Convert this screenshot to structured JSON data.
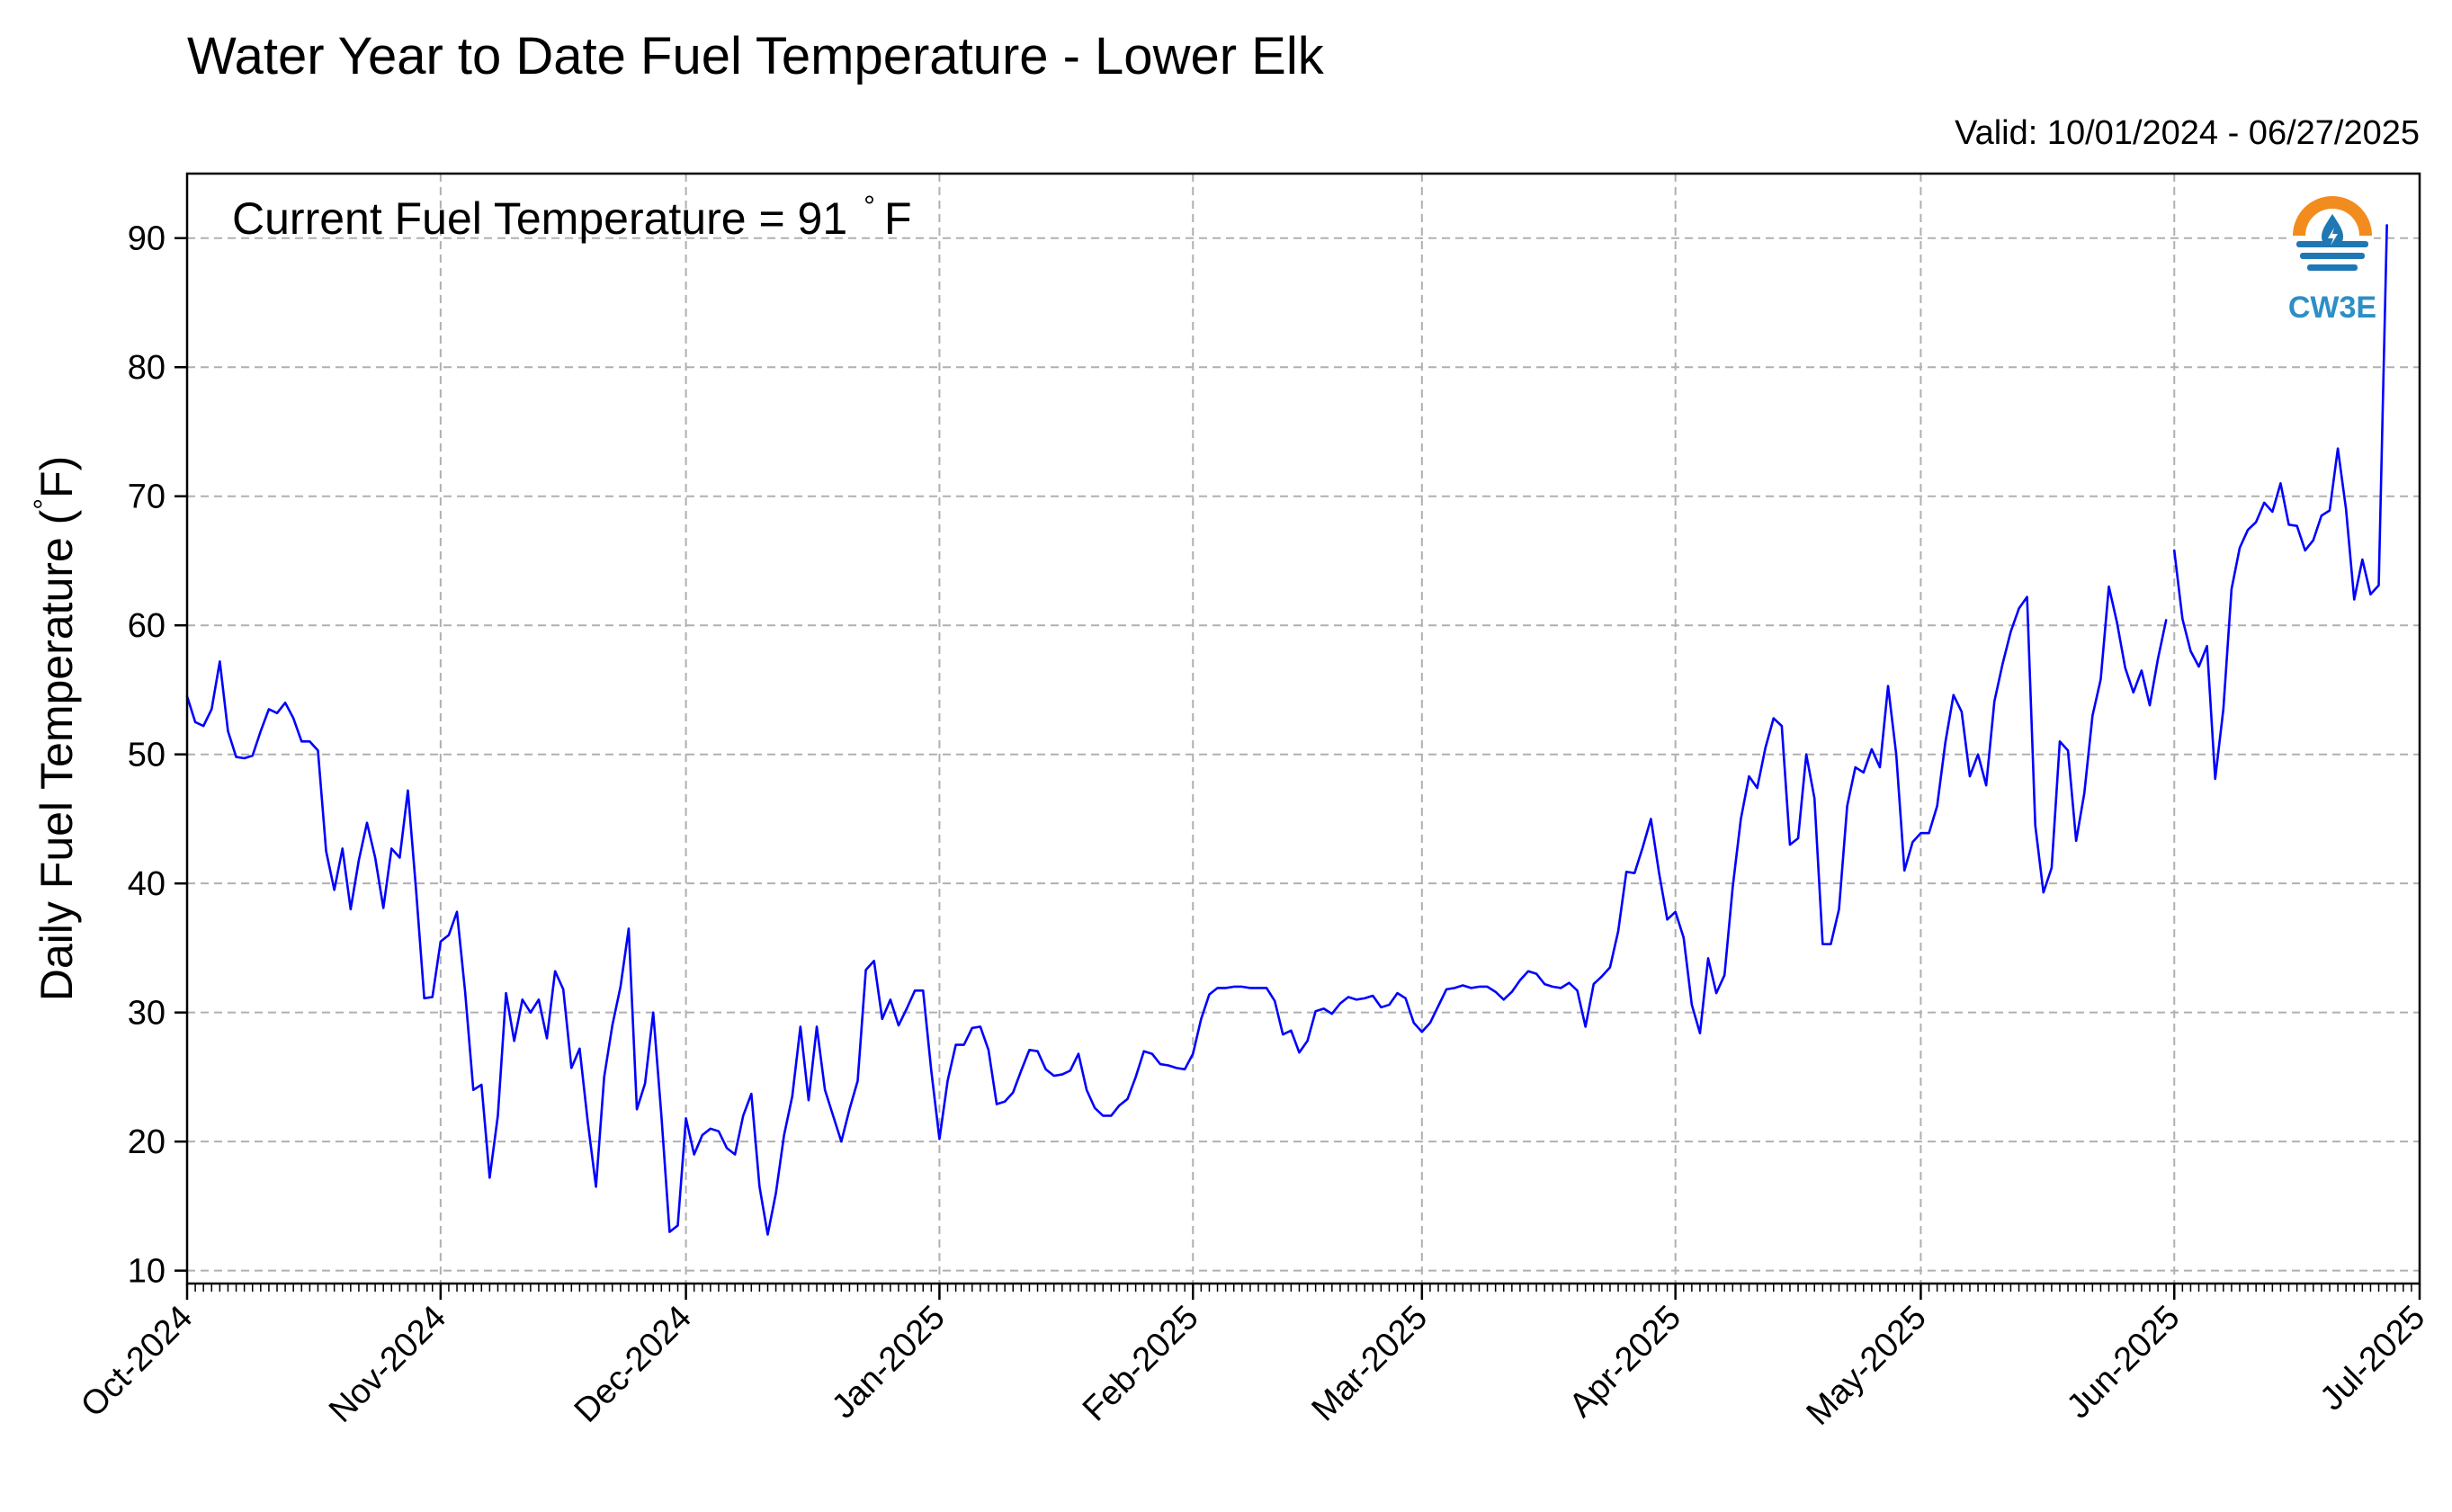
{
  "title": "Water Year to Date Fuel Temperature - Lower Elk",
  "valid_range": "Valid: 10/01/2024 - 06/27/2025",
  "annotation": {
    "prefix": "Current Fuel Temperature = 91",
    "degree": "°",
    "unit": "F"
  },
  "ylabel": {
    "text": "Daily Fuel Temperature (",
    "degree": "°",
    "unit": "F)"
  },
  "logo": {
    "text": "CW3E",
    "icon": "cw3e-logo-icon",
    "colors": {
      "ring": "#f28c1e",
      "water": "#1f78b4"
    }
  },
  "colors": {
    "line": "#0000ff",
    "grid": "#b0b0b0",
    "background": "#ffffff"
  },
  "chart_data": {
    "type": "line",
    "title": "Water Year to Date Fuel Temperature - Lower Elk",
    "subtitle": "Valid: 10/01/2024 - 06/27/2025",
    "xlabel": "",
    "ylabel": "Daily Fuel Temperature (°F)",
    "ylim": [
      9,
      95
    ],
    "yticks": [
      10,
      20,
      30,
      40,
      50,
      60,
      70,
      80,
      90
    ],
    "xlim": [
      "2024-10-01",
      "2025-07-01"
    ],
    "xticks": [
      {
        "date": "2024-10-01",
        "label": "Oct-2024"
      },
      {
        "date": "2024-11-01",
        "label": "Nov-2024"
      },
      {
        "date": "2024-12-01",
        "label": "Dec-2024"
      },
      {
        "date": "2025-01-01",
        "label": "Jan-2025"
      },
      {
        "date": "2025-02-01",
        "label": "Feb-2025"
      },
      {
        "date": "2025-03-01",
        "label": "Mar-2025"
      },
      {
        "date": "2025-04-01",
        "label": "Apr-2025"
      },
      {
        "date": "2025-05-01",
        "label": "May-2025"
      },
      {
        "date": "2025-06-01",
        "label": "Jun-2025"
      },
      {
        "date": "2025-07-01",
        "label": "Jul-2025"
      }
    ],
    "grid": true,
    "legend": "none",
    "series": [
      {
        "segments": [
          {
            "start": "2024-10-01",
            "values": [
              54.5,
              52.5,
              52.2,
              53.5,
              57.2,
              51.8,
              49.8,
              49.7,
              49.9,
              51.8,
              53.5,
              53.2,
              54.0,
              52.8,
              51.0,
              51.0,
              50.3,
              42.5,
              39.5,
              42.7,
              38.0,
              41.8,
              44.7,
              42.0,
              38.1,
              42.7,
              42.0,
              47.2,
              39.5,
              31.1,
              31.2,
              35.5,
              36.0,
              37.8,
              31.6,
              24.0,
              24.4,
              17.2,
              22.0,
              31.5,
              27.8,
              31.0,
              30.0,
              31.0,
              28.0,
              33.2,
              31.8,
              25.7,
              27.2,
              21.5,
              16.5,
              25.0,
              29.0,
              32.0,
              36.5,
              22.5,
              24.5,
              30.0,
              22.0,
              13.0,
              13.5,
              21.8,
              19.0,
              20.5,
              21.0,
              20.8,
              19.5,
              19.0,
              22.0,
              23.7,
              16.5,
              12.8,
              16.0,
              20.5,
              23.5,
              28.9,
              23.2,
              28.9,
              24.0,
              22.0,
              20.0,
              22.5,
              24.7,
              33.3,
              34.0,
              29.5,
              31.0,
              29.0,
              30.3,
              31.7,
              31.7,
              25.5,
              20.2,
              24.7,
              27.5,
              27.5,
              28.8,
              28.9,
              27.1,
              22.9,
              23.1,
              23.8,
              25.5,
              27.1,
              27.0,
              25.6,
              25.1,
              25.2,
              25.5,
              26.8,
              24.0,
              22.6,
              22.0,
              22.0,
              22.8,
              23.3,
              25.0,
              27.0,
              26.8,
              26.0,
              25.9,
              25.7,
              25.6,
              26.8,
              29.5,
              31.4,
              31.9,
              31.9,
              32.0,
              32.0,
              31.9,
              31.9,
              31.9,
              30.9,
              28.3,
              28.6,
              26.9,
              27.8,
              30.1,
              30.3,
              29.9,
              30.7,
              31.2,
              31.0,
              31.1,
              31.3,
              30.4,
              30.6,
              31.5,
              31.1,
              29.2,
              28.5,
              29.2,
              30.5,
              31.8,
              31.9,
              32.1,
              31.9,
              32.0,
              32.0,
              31.6,
              31.0,
              31.6,
              32.5,
              33.2,
              33.0,
              32.2,
              32.0,
              31.9,
              32.3,
              31.7,
              28.9,
              32.2,
              32.8,
              33.5,
              36.3,
              40.9,
              40.8,
              42.8,
              45.0,
              40.8,
              37.2,
              37.8,
              35.8,
              30.6,
              28.4,
              34.2,
              31.5,
              32.9,
              39.7,
              45.0,
              48.3,
              47.4,
              50.5,
              52.8,
              52.2,
              43.0,
              43.5,
              50.0,
              46.6,
              35.3,
              35.3,
              38.0,
              46.0,
              49.0,
              48.6,
              50.4,
              49.0,
              55.3,
              50.0,
              41.0,
              43.2,
              43.9,
              43.9,
              46.0,
              50.9,
              54.6,
              53.3,
              48.3,
              50.0,
              47.6,
              54.1,
              57.0,
              59.5,
              61.3,
              62.2,
              44.5,
              39.3,
              41.2,
              51.0,
              50.3,
              43.3,
              47.0,
              53.0,
              55.8,
              63.0,
              60.2,
              56.7,
              54.8,
              56.5,
              53.8,
              57.4,
              60.4
            ]
          },
          {
            "start": "2025-06-01",
            "values": [
              65.8,
              60.5,
              58.0,
              56.8,
              58.4,
              48.1,
              53.5,
              62.8,
              66.0,
              67.4,
              68.0,
              69.5,
              68.8,
              71.0,
              67.8,
              67.7,
              65.8,
              66.6,
              68.5,
              68.9,
              73.7,
              69.0,
              62.0,
              65.1,
              62.4,
              63.1,
              91.0
            ]
          }
        ]
      }
    ]
  }
}
